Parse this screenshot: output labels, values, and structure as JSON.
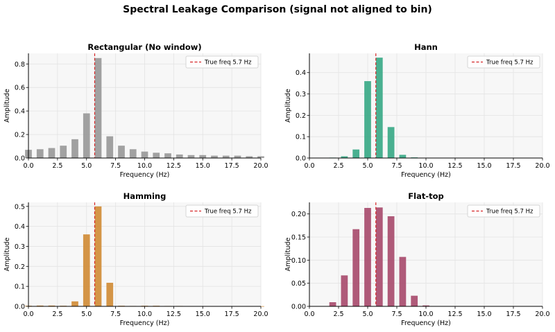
{
  "figure": {
    "title": "Spectral Leakage Comparison (signal not aligned to bin)"
  },
  "chart_data": [
    {
      "type": "bar",
      "title": "Rectangular (No window)",
      "xlabel": "Frequency (Hz)",
      "ylabel": "Amplitude",
      "xlim": [
        0,
        20
      ],
      "ylim": [
        0,
        0.89
      ],
      "xticks": [
        "0.0",
        "2.5",
        "5.0",
        "7.5",
        "10.0",
        "12.5",
        "15.0",
        "17.5",
        "20.0"
      ],
      "yticks": [
        "0.0",
        "0.2",
        "0.4",
        "0.6",
        "0.8"
      ],
      "ytick_values": [
        0,
        0.2,
        0.4,
        0.6,
        0.8
      ],
      "color": "#999999",
      "grid": true,
      "legend_position": "top-right",
      "reference_line": {
        "x": 5.7,
        "label": "True freq 5.7 Hz",
        "color": "#d62728",
        "style": "dashed"
      },
      "x": [
        0,
        1,
        2,
        3,
        4,
        5,
        6,
        7,
        8,
        9,
        10,
        11,
        12,
        13,
        14,
        15,
        16,
        17,
        18,
        19,
        20
      ],
      "values": [
        0.07,
        0.075,
        0.085,
        0.105,
        0.16,
        0.38,
        0.85,
        0.185,
        0.105,
        0.075,
        0.055,
        0.045,
        0.04,
        0.03,
        0.025,
        0.025,
        0.02,
        0.02,
        0.02,
        0.015,
        0.015
      ]
    },
    {
      "type": "bar",
      "title": "Hann",
      "xlabel": "Frequency (Hz)",
      "ylabel": "Amplitude",
      "xlim": [
        0,
        20
      ],
      "ylim": [
        0,
        0.49
      ],
      "xticks": [
        "0.0",
        "2.5",
        "5.0",
        "7.5",
        "10.0",
        "12.5",
        "15.0",
        "17.5",
        "20.0"
      ],
      "yticks": [
        "0.0",
        "0.1",
        "0.2",
        "0.3",
        "0.4"
      ],
      "ytick_values": [
        0,
        0.1,
        0.2,
        0.3,
        0.4
      ],
      "color": "#3aa987",
      "grid": true,
      "legend_position": "top-right",
      "reference_line": {
        "x": 5.7,
        "label": "True freq 5.7 Hz",
        "color": "#d62728",
        "style": "dashed"
      },
      "x": [
        0,
        1,
        2,
        3,
        4,
        5,
        6,
        7,
        8,
        9,
        10,
        11,
        12,
        13,
        14,
        15,
        16,
        17,
        18,
        19,
        20
      ],
      "values": [
        0,
        0.001,
        0.002,
        0.008,
        0.04,
        0.36,
        0.47,
        0.145,
        0.015,
        0.003,
        0.001,
        0,
        0,
        0,
        0,
        0,
        0,
        0,
        0,
        0,
        0
      ]
    },
    {
      "type": "bar",
      "title": "Hamming",
      "xlabel": "Frequency (Hz)",
      "ylabel": "Amplitude",
      "xlim": [
        0,
        20
      ],
      "ylim": [
        0,
        0.52
      ],
      "xticks": [
        "0.0",
        "2.5",
        "5.0",
        "7.5",
        "10.0",
        "12.5",
        "15.0",
        "17.5",
        "20.0"
      ],
      "yticks": [
        "0.0",
        "0.1",
        "0.2",
        "0.3",
        "0.4",
        "0.5"
      ],
      "ytick_values": [
        0,
        0.1,
        0.2,
        0.3,
        0.4,
        0.5
      ],
      "color": "#d08c37",
      "grid": true,
      "legend_position": "top-right",
      "reference_line": {
        "x": 5.7,
        "label": "True freq 5.7 Hz",
        "color": "#d62728",
        "style": "dashed"
      },
      "x": [
        0,
        1,
        2,
        3,
        4,
        5,
        6,
        7,
        8,
        9,
        10,
        11,
        12,
        13,
        14,
        15,
        16,
        17,
        18,
        19,
        20
      ],
      "values": [
        0.003,
        0.004,
        0.004,
        0.003,
        0.025,
        0.36,
        0.5,
        0.118,
        0.003,
        0.002,
        0.003,
        0.003,
        0.002,
        0.002,
        0.001,
        0.001,
        0.001,
        0.001,
        0.001,
        0.001,
        0.001
      ]
    },
    {
      "type": "bar",
      "title": "Flat-top",
      "xlabel": "Frequency (Hz)",
      "ylabel": "Amplitude",
      "xlim": [
        0,
        20
      ],
      "ylim": [
        0,
        0.225
      ],
      "xticks": [
        "0.0",
        "2.5",
        "5.0",
        "7.5",
        "10.0",
        "12.5",
        "15.0",
        "17.5",
        "20.0"
      ],
      "yticks": [
        "0.00",
        "0.05",
        "0.10",
        "0.15",
        "0.20"
      ],
      "ytick_values": [
        0,
        0.05,
        0.1,
        0.15,
        0.2
      ],
      "color": "#a84c6e",
      "grid": true,
      "legend_position": "top-right",
      "reference_line": {
        "x": 5.7,
        "label": "True freq 5.7 Hz",
        "color": "#d62728",
        "style": "dashed"
      },
      "x": [
        0,
        1,
        2,
        3,
        4,
        5,
        6,
        7,
        8,
        9,
        10,
        11,
        12,
        13,
        14,
        15,
        16,
        17,
        18,
        19,
        20
      ],
      "values": [
        0,
        0,
        0.009,
        0.067,
        0.167,
        0.213,
        0.214,
        0.195,
        0.107,
        0.023,
        0.002,
        0,
        0,
        0,
        0,
        0,
        0,
        0,
        0,
        0,
        0
      ]
    }
  ]
}
